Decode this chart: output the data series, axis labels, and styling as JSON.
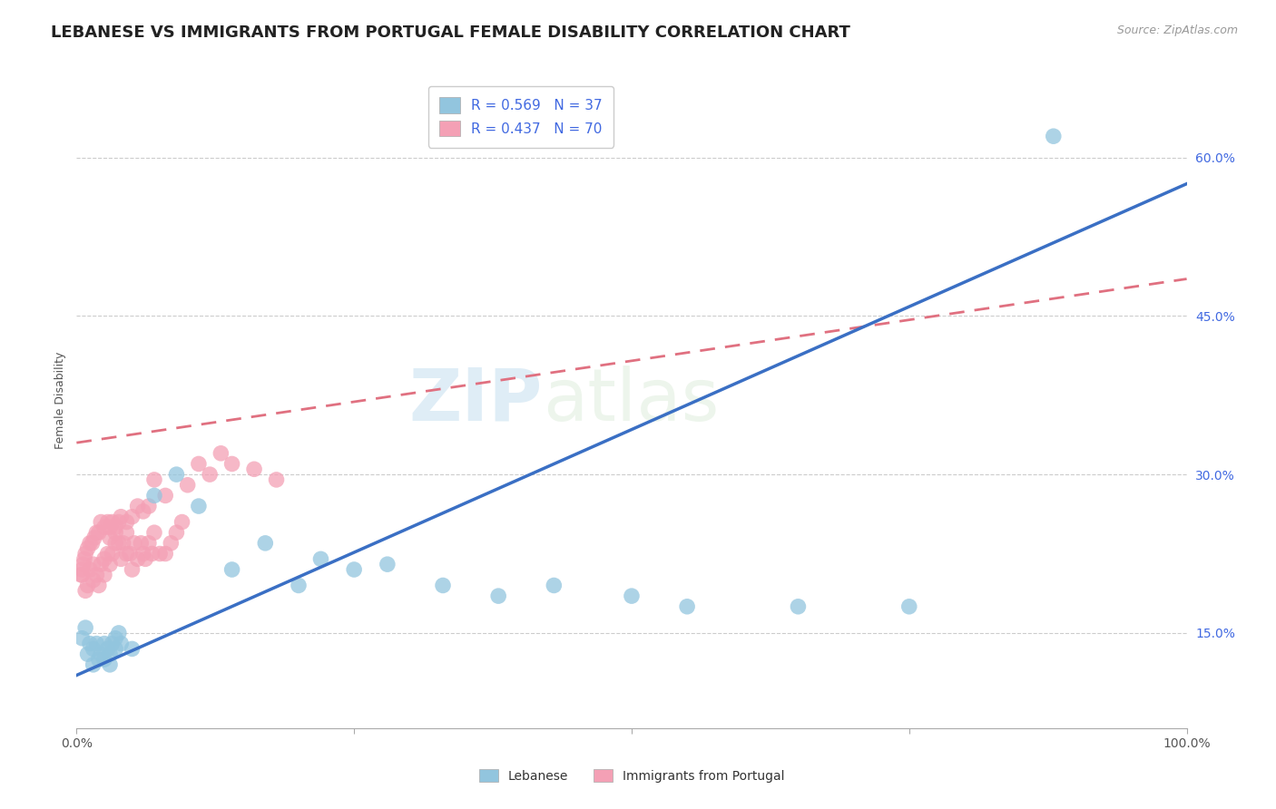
{
  "title": "LEBANESE VS IMMIGRANTS FROM PORTUGAL FEMALE DISABILITY CORRELATION CHART",
  "source": "Source: ZipAtlas.com",
  "ylabel": "Female Disability",
  "xlabel": "",
  "watermark_zip": "ZIP",
  "watermark_atlas": "atlas",
  "legend_1_label": "R = 0.569   N = 37",
  "legend_2_label": "R = 0.437   N = 70",
  "legend_1_name": "Lebanese",
  "legend_2_name": "Immigrants from Portugal",
  "color_blue": "#92c5de",
  "color_pink": "#f4a0b5",
  "line_blue": "#3a6fc4",
  "line_pink": "#e07080",
  "xmin": 0.0,
  "xmax": 1.0,
  "ymin": 0.06,
  "ymax": 0.68,
  "yticks": [
    0.15,
    0.3,
    0.45,
    0.6
  ],
  "ytick_labels": [
    "15.0%",
    "30.0%",
    "45.0%",
    "60.0%"
  ],
  "xticks": [
    0.0,
    0.25,
    0.5,
    0.75,
    1.0
  ],
  "xtick_labels": [
    "0.0%",
    "",
    "",
    "",
    "100.0%"
  ],
  "grid_color": "#cccccc",
  "background_color": "#ffffff",
  "title_fontsize": 13,
  "axis_label_fontsize": 9,
  "tick_fontsize": 10,
  "legend_fontsize": 11,
  "blue_line_x0": 0.0,
  "blue_line_y0": 0.11,
  "blue_line_x1": 1.0,
  "blue_line_y1": 0.575,
  "pink_line_x0": 0.0,
  "pink_line_y0": 0.33,
  "pink_line_x1": 1.0,
  "pink_line_y1": 0.485,
  "blue_scatter_x": [
    0.005,
    0.008,
    0.01,
    0.012,
    0.015,
    0.015,
    0.018,
    0.02,
    0.022,
    0.025,
    0.025,
    0.028,
    0.03,
    0.03,
    0.032,
    0.035,
    0.035,
    0.038,
    0.04,
    0.05,
    0.07,
    0.09,
    0.11,
    0.14,
    0.17,
    0.2,
    0.22,
    0.25,
    0.28,
    0.33,
    0.38,
    0.43,
    0.5,
    0.55,
    0.65,
    0.75,
    0.88
  ],
  "blue_scatter_y": [
    0.145,
    0.155,
    0.13,
    0.14,
    0.135,
    0.12,
    0.14,
    0.125,
    0.13,
    0.14,
    0.125,
    0.135,
    0.12,
    0.13,
    0.14,
    0.145,
    0.135,
    0.15,
    0.14,
    0.135,
    0.28,
    0.3,
    0.27,
    0.21,
    0.235,
    0.195,
    0.22,
    0.21,
    0.215,
    0.195,
    0.185,
    0.195,
    0.185,
    0.175,
    0.175,
    0.175,
    0.62
  ],
  "pink_scatter_x": [
    0.005,
    0.008,
    0.01,
    0.012,
    0.015,
    0.015,
    0.018,
    0.02,
    0.022,
    0.025,
    0.025,
    0.028,
    0.03,
    0.03,
    0.032,
    0.035,
    0.035,
    0.038,
    0.04,
    0.042,
    0.045,
    0.045,
    0.048,
    0.05,
    0.052,
    0.055,
    0.058,
    0.06,
    0.062,
    0.065,
    0.068,
    0.07,
    0.075,
    0.08,
    0.085,
    0.09,
    0.095,
    0.1,
    0.11,
    0.12,
    0.13,
    0.14,
    0.16,
    0.18,
    0.08,
    0.07,
    0.065,
    0.055,
    0.06,
    0.05,
    0.045,
    0.04,
    0.038,
    0.035,
    0.032,
    0.03,
    0.028,
    0.025,
    0.022,
    0.02,
    0.018,
    0.016,
    0.014,
    0.012,
    0.01,
    0.008,
    0.007,
    0.006,
    0.005,
    0.004
  ],
  "pink_scatter_y": [
    0.205,
    0.19,
    0.195,
    0.21,
    0.2,
    0.215,
    0.205,
    0.195,
    0.215,
    0.22,
    0.205,
    0.225,
    0.215,
    0.24,
    0.225,
    0.235,
    0.245,
    0.235,
    0.22,
    0.235,
    0.225,
    0.245,
    0.225,
    0.21,
    0.235,
    0.22,
    0.235,
    0.225,
    0.22,
    0.235,
    0.225,
    0.245,
    0.225,
    0.225,
    0.235,
    0.245,
    0.255,
    0.29,
    0.31,
    0.3,
    0.32,
    0.31,
    0.305,
    0.295,
    0.28,
    0.295,
    0.27,
    0.27,
    0.265,
    0.26,
    0.255,
    0.26,
    0.255,
    0.25,
    0.255,
    0.25,
    0.255,
    0.25,
    0.255,
    0.245,
    0.245,
    0.24,
    0.235,
    0.235,
    0.23,
    0.225,
    0.22,
    0.215,
    0.21,
    0.205
  ]
}
